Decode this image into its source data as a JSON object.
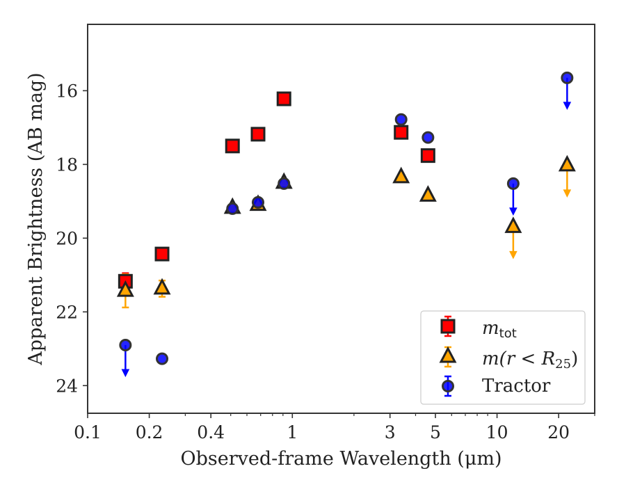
{
  "chart_data": {
    "type": "scatter",
    "xlabel": "Observed-frame Wavelength (μm)",
    "ylabel": "Apparent Brightness (AB mag)",
    "xscale": "log",
    "xlim": [
      0.1,
      30
    ],
    "ylim": [
      24.75,
      14.2
    ],
    "y_inverted": true,
    "x_ticks": [
      0.1,
      0.2,
      0.4,
      1,
      3,
      5,
      10,
      20
    ],
    "x_tick_labels": [
      "0.1",
      "0.2",
      "0.4",
      "1",
      "3",
      "5",
      "10",
      "20"
    ],
    "y_ticks": [
      16,
      18,
      20,
      22,
      24
    ],
    "y_tick_labels": [
      "16",
      "18",
      "20",
      "22",
      "24"
    ],
    "legend_position": "lower-right",
    "series": [
      {
        "name": "$m_{\\rm tot}$",
        "legend_label": {
          "base": "m",
          "sub": "tot"
        },
        "marker": "square",
        "color": "#ff0000",
        "errcolor": "#ff0000",
        "points": [
          {
            "x": 0.153,
            "y": 21.17,
            "err": 0.22
          },
          {
            "x": 0.231,
            "y": 20.43
          },
          {
            "x": 0.51,
            "y": 17.5
          },
          {
            "x": 0.68,
            "y": 17.18
          },
          {
            "x": 0.91,
            "y": 16.22
          },
          {
            "x": 3.4,
            "y": 17.13
          },
          {
            "x": 4.6,
            "y": 17.76
          }
        ]
      },
      {
        "name": "$m(r<R_{25})$",
        "legend_label": {
          "parts": [
            "m(",
            "r",
            " < ",
            "R",
            "25",
            ")"
          ]
        },
        "marker": "triangle",
        "color": "#ffa500",
        "errcolor": "#ffa500",
        "points": [
          {
            "x": 0.153,
            "y": 21.43,
            "err": 0.45
          },
          {
            "x": 0.231,
            "y": 21.37,
            "err": 0.22
          },
          {
            "x": 0.51,
            "y": 19.18
          },
          {
            "x": 0.68,
            "y": 19.1
          },
          {
            "x": 0.91,
            "y": 18.5
          },
          {
            "x": 3.4,
            "y": 18.35
          },
          {
            "x": 4.6,
            "y": 18.85
          },
          {
            "x": 12,
            "y": 19.7,
            "upper_limit": true
          },
          {
            "x": 22,
            "y": 18.03,
            "upper_limit": true
          }
        ]
      },
      {
        "name": "Tractor",
        "legend_label": {
          "base": "Tractor"
        },
        "marker": "circle",
        "color": "#0000ff",
        "errcolor": "#0000ff",
        "points": [
          {
            "x": 0.153,
            "y": 22.9,
            "upper_limit": true
          },
          {
            "x": 0.231,
            "y": 23.27
          },
          {
            "x": 0.51,
            "y": 19.2
          },
          {
            "x": 0.68,
            "y": 19.03
          },
          {
            "x": 0.91,
            "y": 18.52
          },
          {
            "x": 3.4,
            "y": 16.78
          },
          {
            "x": 4.6,
            "y": 17.27
          },
          {
            "x": 12,
            "y": 18.52,
            "upper_limit": true
          },
          {
            "x": 22,
            "y": 15.65,
            "upper_limit": true
          }
        ]
      }
    ]
  }
}
